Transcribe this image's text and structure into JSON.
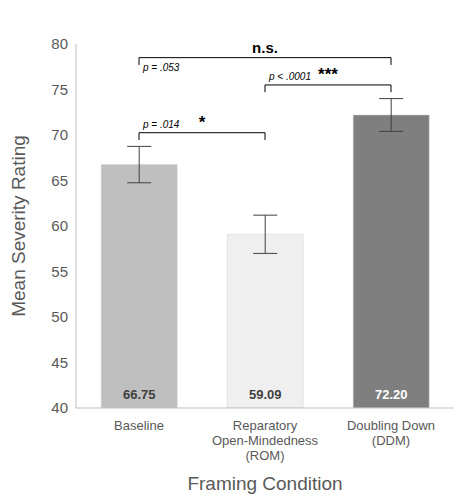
{
  "chart_data": {
    "type": "bar",
    "x_label": "Framing Condition",
    "y_label": "Mean Severity Rating",
    "categories": [
      "Baseline",
      "Reparatory\nOpen-Mindedness\n(ROM)",
      "Doubling Down\n(DDM)"
    ],
    "values": [
      66.75,
      59.09,
      72.2
    ],
    "value_labels": [
      "66.75",
      "59.09",
      "72.20"
    ],
    "errors": [
      2.0,
      2.1,
      1.8
    ],
    "colors": [
      "#bfbfbf",
      "#efefef",
      "#7f7f7f"
    ],
    "ylim": [
      40,
      80
    ],
    "yticks": [
      40,
      45,
      50,
      55,
      60,
      65,
      70,
      75,
      80
    ],
    "grid": false,
    "data_labels": true,
    "comparisons": [
      {
        "between": [
          0,
          2
        ],
        "label": "n.s.",
        "p_label": "p = .053"
      },
      {
        "between": [
          0,
          1
        ],
        "label": "*",
        "p_label": "p = .014"
      },
      {
        "between": [
          1,
          2
        ],
        "label": "***",
        "p_label": "p < .0001"
      }
    ]
  }
}
